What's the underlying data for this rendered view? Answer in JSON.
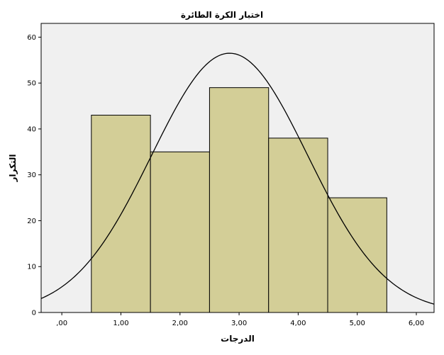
{
  "chart_data": {
    "type": "bar",
    "subtype": "histogram",
    "title": "اختبار الكرة الطائرة",
    "xlabel": "الدرجات",
    "ylabel": "التكرار",
    "bins": [
      {
        "from": 0.5,
        "to": 1.5,
        "value": 43
      },
      {
        "from": 1.5,
        "to": 2.5,
        "value": 35
      },
      {
        "from": 2.5,
        "to": 3.5,
        "value": 49
      },
      {
        "from": 3.5,
        "to": 4.5,
        "value": 38
      },
      {
        "from": 4.5,
        "to": 5.5,
        "value": 25
      }
    ],
    "xlim": [
      -0.35,
      6.3
    ],
    "ylim": [
      0,
      63
    ],
    "xticks": [
      0,
      1,
      2,
      3,
      4,
      5,
      6
    ],
    "xtick_labels": [
      ",00",
      "1,00",
      "2,00",
      "3,00",
      "4,00",
      "5,00",
      "6,00"
    ],
    "yticks": [
      0,
      10,
      20,
      30,
      40,
      50,
      60
    ],
    "ytick_labels": [
      "0",
      "10",
      "20",
      "30",
      "40",
      "50",
      "60"
    ],
    "normal_curve": {
      "mean": 2.84,
      "sd": 1.32,
      "peak": 56.5
    },
    "grid": false,
    "colors": {
      "plot_background": "#f0f0f0",
      "bar_fill": "#d3ce97",
      "bar_stroke": "#000000",
      "curve": "#000000"
    }
  }
}
